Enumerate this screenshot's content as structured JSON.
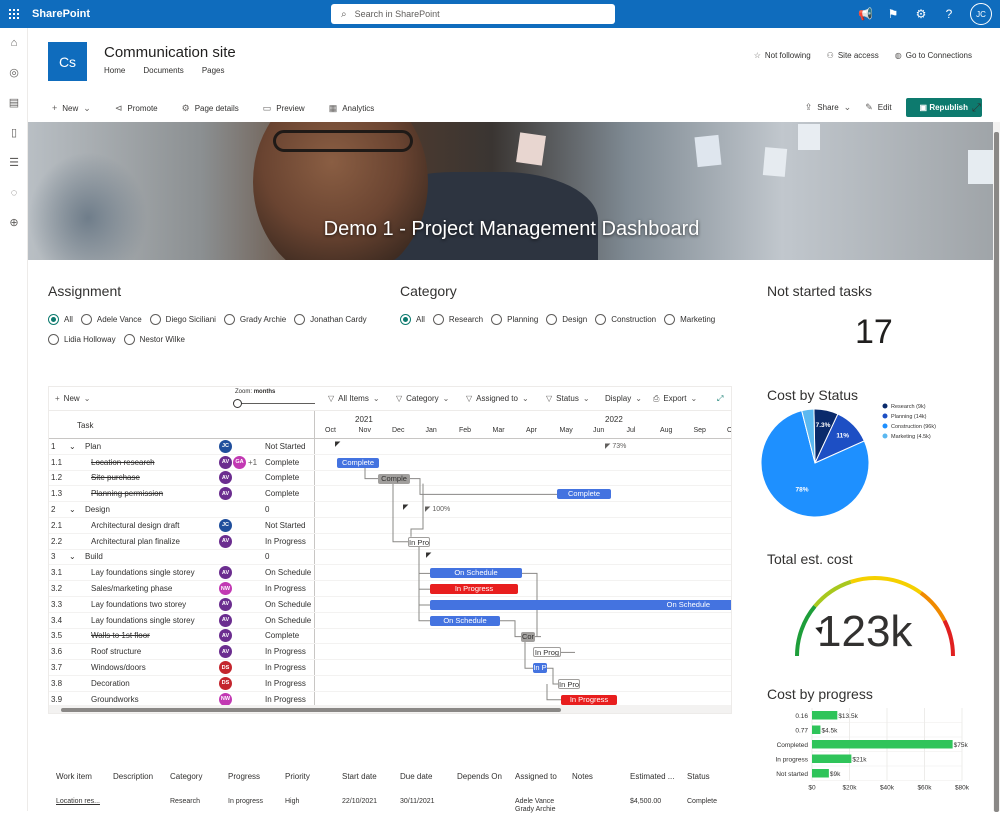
{
  "topbar": {
    "brand": "SharePoint",
    "search_placeholder": "Search in SharePoint",
    "user_initials": "JC"
  },
  "site": {
    "logo_initials": "Cs",
    "title": "Communication site",
    "nav": [
      "Home",
      "Documents",
      "Pages"
    ],
    "actions": [
      "Not following",
      "Site access",
      "Go to Connections"
    ]
  },
  "commands": {
    "new": "New",
    "promote": "Promote",
    "page_details": "Page details",
    "preview": "Preview",
    "analytics": "Analytics",
    "share": "Share",
    "edit": "Edit",
    "republish": "Republish"
  },
  "hero": {
    "title": "Demo 1 - Project Management Dashboard"
  },
  "assignment": {
    "title": "Assignment",
    "options": [
      "All",
      "Adele Vance",
      "Diego Siciliani",
      "Grady Archie",
      "Jonathan Cardy",
      "Lidia Holloway",
      "Nestor Wilke"
    ],
    "selected": 0
  },
  "category": {
    "title": "Category",
    "options": [
      "All",
      "Research",
      "Planning",
      "Design",
      "Construction",
      "Marketing"
    ],
    "selected": 0
  },
  "not_started": {
    "title": "Not started tasks",
    "value": "17"
  },
  "gantt": {
    "toolbar": {
      "new": "New",
      "zoom_label": "Zoom:",
      "zoom_value": "months",
      "all_items": "All Items",
      "category": "Category",
      "assigned_to": "Assigned to",
      "status": "Status",
      "display": "Display",
      "export": "Export"
    },
    "task_header": "Task",
    "years": [
      "2021",
      "2022"
    ],
    "months": [
      "Oct",
      "Nov",
      "Dec",
      "Jan",
      "Feb",
      "Mar",
      "Apr",
      "May",
      "Jun",
      "Jul",
      "Aug",
      "Sep",
      "O"
    ],
    "rows": [
      {
        "id": "1",
        "task": "Plan",
        "group": true,
        "avatar": "JC",
        "avatar_color": "#1f4e9c",
        "status": "Not Started",
        "pct": "73%"
      },
      {
        "id": "1.1",
        "task": "Location research",
        "strike": true,
        "avatar": "AV",
        "avatar_color": "#6b2d8f",
        "avatar2": "GA",
        "avatar2_color": "#c239b3",
        "extra": "+1",
        "status": "Complete",
        "bar": {
          "label": "Complete",
          "color": "blue"
        }
      },
      {
        "id": "1.2",
        "task": "Site purchase",
        "strike": true,
        "avatar": "AV",
        "avatar_color": "#6b2d8f",
        "status": "Complete",
        "bar": {
          "label": "Comple",
          "color": "grey"
        }
      },
      {
        "id": "1.3",
        "task": "Planning permission",
        "strike": true,
        "avatar": "AV",
        "avatar_color": "#6b2d8f",
        "status": "Complete",
        "bar": {
          "label": "Complete",
          "color": "blue"
        }
      },
      {
        "id": "2",
        "task": "Design",
        "group": true,
        "status": "0",
        "pct": "100%"
      },
      {
        "id": "2.1",
        "task": "Architectural design draft",
        "avatar": "JC",
        "avatar_color": "#1f4e9c",
        "status": "Not Started"
      },
      {
        "id": "2.2",
        "task": "Architectural plan finalize",
        "avatar": "AV",
        "avatar_color": "#6b2d8f",
        "status": "In Progress",
        "bar": {
          "label": "In Pro",
          "color": "outline"
        }
      },
      {
        "id": "3",
        "task": "Build",
        "group": true,
        "status": "0"
      },
      {
        "id": "3.1",
        "task": "Lay foundations single storey",
        "avatar": "AV",
        "avatar_color": "#6b2d8f",
        "status": "On Schedule",
        "bar": {
          "label": "On Schedule",
          "color": "blue"
        }
      },
      {
        "id": "3.2",
        "task": "Sales/marketing phase",
        "avatar": "NW",
        "avatar_color": "#c239b3",
        "status": "In Progress",
        "bar": {
          "label": "In Progress",
          "color": "red"
        }
      },
      {
        "id": "3.3",
        "task": "Lay foundations two storey",
        "avatar": "AV",
        "avatar_color": "#6b2d8f",
        "status": "On Schedule",
        "bar": {
          "label": "On Schedule",
          "color": "blue"
        }
      },
      {
        "id": "3.4",
        "task": "Lay foundations single storey",
        "avatar": "AV",
        "avatar_color": "#6b2d8f",
        "status": "On Schedule",
        "bar": {
          "label": "On Schedule",
          "color": "blue"
        }
      },
      {
        "id": "3.5",
        "task": "Walls to 1st floor",
        "strike": true,
        "avatar": "AV",
        "avatar_color": "#6b2d8f",
        "status": "Complete",
        "bar": {
          "label": "Cor",
          "color": "grey"
        }
      },
      {
        "id": "3.6",
        "task": "Roof structure",
        "avatar": "AV",
        "avatar_color": "#6b2d8f",
        "status": "In Progress",
        "bar": {
          "label": "In Prog",
          "color": "outline"
        }
      },
      {
        "id": "3.7",
        "task": "Windows/doors",
        "avatar": "DS",
        "avatar_color": "#c4262e",
        "status": "In Progress",
        "bar": {
          "label": "In P",
          "color": "blue"
        }
      },
      {
        "id": "3.8",
        "task": "Decoration",
        "avatar": "DS",
        "avatar_color": "#c4262e",
        "status": "In Progress",
        "bar": {
          "label": "In Pro",
          "color": "outline"
        }
      },
      {
        "id": "3.9",
        "task": "Groundworks",
        "avatar": "NW",
        "avatar_color": "#c239b3",
        "status": "In Progress",
        "bar": {
          "label": "In Progress",
          "color": "red"
        }
      }
    ]
  },
  "cost_by_status": {
    "title": "Cost by Status",
    "chart_data": {
      "type": "pie",
      "categories": [
        "Research (9k)",
        "Planning (14k)",
        "Construction (96k)",
        "Marketing (4.5k)"
      ],
      "values": [
        9,
        14,
        96,
        4.5
      ],
      "labels": [
        "7.3%",
        "11%",
        "78%",
        ""
      ],
      "colors": [
        "#0a2a6b",
        "#1d4fc4",
        "#1e90ff",
        "#5bb8f0"
      ],
      "legend": "top-right"
    }
  },
  "total_cost": {
    "title": "Total est. cost",
    "value": "123k",
    "gauge_fraction": 0.62
  },
  "cost_by_progress": {
    "title": "Cost by progress",
    "chart_data": {
      "type": "bar",
      "orientation": "horizontal",
      "categories": [
        "0.16",
        "0.77",
        "Completed",
        "In progress",
        "Not started"
      ],
      "values": [
        13.5,
        4.5,
        75,
        21,
        9
      ],
      "labels": [
        "$13.5k",
        "$4.5k",
        "$75k",
        "$21k",
        "$9k"
      ],
      "ticks": [
        "$0",
        "$20k",
        "$40k",
        "$60k",
        "$80k"
      ],
      "xlim": [
        0,
        80
      ],
      "color": "#2fc45a"
    }
  },
  "work_table": {
    "headers": [
      "Work item",
      "Description",
      "Category",
      "Progress",
      "Priority",
      "Start date",
      "Due date",
      "Depends On",
      "Assigned to",
      "Notes",
      "Estimated ...",
      "Status"
    ],
    "row": [
      "Location res...",
      "",
      "Research",
      "In progress",
      "High",
      "22/10/2021",
      "30/11/2021",
      "",
      "Adele Vance",
      "",
      "$4,500.00",
      "Complete"
    ],
    "row_extra": "Grady Archie"
  }
}
